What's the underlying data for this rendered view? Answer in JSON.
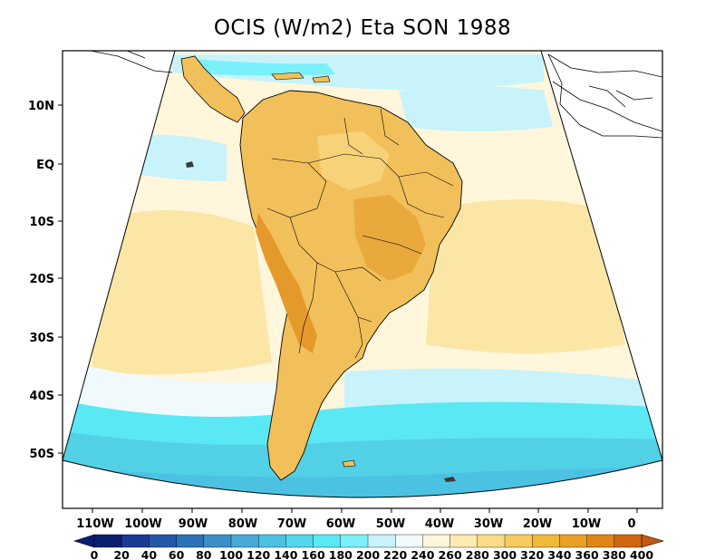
{
  "title": "OCIS (W/m2) Eta SON 1988",
  "map": {
    "lat_labels": [
      "10N",
      "EQ",
      "10S",
      "20S",
      "30S",
      "40S",
      "50S"
    ],
    "lon_labels": [
      "110W",
      "100W",
      "90W",
      "80W",
      "70W",
      "60W",
      "50W",
      "40W",
      "30W",
      "20W",
      "10W",
      "0"
    ]
  },
  "colorbar": {
    "labels": [
      "0",
      "20",
      "40",
      "60",
      "80",
      "100",
      "120",
      "140",
      "160",
      "180",
      "200",
      "220",
      "240",
      "260",
      "280",
      "300",
      "320",
      "340",
      "360",
      "380",
      "400"
    ],
    "colors": [
      "#0a1f70",
      "#1a3a93",
      "#2357a8",
      "#2b72b8",
      "#3c8fc8",
      "#46a9d6",
      "#4cc2e2",
      "#52d7ec",
      "#5ae8f4",
      "#7af1fa",
      "#c8f3fb",
      "#f0fafc",
      "#fff6dc",
      "#fdeab0",
      "#f9dc86",
      "#f5cc5e",
      "#efb93a",
      "#e9a024",
      "#df8516",
      "#cf6610"
    ],
    "min_arrow_color": "#0a1f70",
    "max_arrow_color": "#c05a10"
  },
  "colors": {
    "ocean_light": "#fff6dc",
    "ocean_cyan": "#5ae8f4",
    "ocean_blue": "#52d0e6",
    "land": "#f2c05a",
    "land_dark": "#e49a2a",
    "subsidence_pale": "#fbe6a6"
  }
}
